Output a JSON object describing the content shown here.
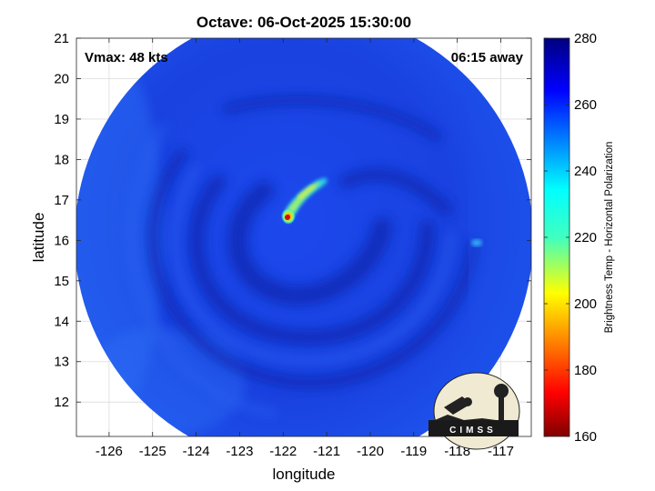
{
  "title": "Octave: 06-Oct-2025 15:30:00",
  "annotations": {
    "vmax": "Vmax: 48 kts",
    "time_away": "06:15 away"
  },
  "axes": {
    "xlabel": "longitude",
    "ylabel": "latitude",
    "xlim": [
      -126.75,
      -116.3
    ],
    "ylim": [
      11.15,
      21
    ],
    "x_ticks": [
      -126,
      -125,
      -124,
      -123,
      -122,
      -121,
      -120,
      -119,
      -118,
      -117
    ],
    "x_tick_labels": [
      "-126",
      "-125",
      "-124",
      "-123",
      "-122",
      "-121",
      "-120",
      "-119",
      "-118",
      "-117"
    ],
    "y_ticks": [
      12,
      13,
      14,
      15,
      16,
      17,
      18,
      19,
      20,
      21
    ],
    "y_tick_labels": [
      "12",
      "13",
      "14",
      "15",
      "16",
      "17",
      "18",
      "19",
      "20",
      "21"
    ],
    "grid": true
  },
  "colorbar": {
    "label": "Brightness Temp - Horizontal Polarization",
    "range": [
      160,
      280
    ],
    "ticks": [
      160,
      180,
      200,
      220,
      240,
      260,
      280
    ],
    "tick_labels": [
      "160",
      "180",
      "200",
      "220",
      "240",
      "260",
      "280"
    ],
    "colormap": "jet"
  },
  "logo": {
    "text": "CIMSS"
  },
  "colors": {
    "background_field": "#1a44e8",
    "dark_band": "#0d2ab8",
    "warm_core": "#d01010"
  },
  "chart_data": {
    "type": "heatmap",
    "title": "Octave: 06-Oct-2025 15:30:00",
    "xlabel": "longitude",
    "ylabel": "latitude",
    "xlim": [
      -126.75,
      -116.3
    ],
    "ylim": [
      11.15,
      21
    ],
    "swath_center": [
      -121.5,
      16.0
    ],
    "storm_center": [
      -121.95,
      16.55
    ],
    "background_tb": 262,
    "features": [
      {
        "name": "warm_core_max",
        "lon": -122.05,
        "lat": 16.5,
        "tb": 170
      },
      {
        "name": "rain_band_arc_1",
        "lon": -121.9,
        "lat": 16.8,
        "tb": 225
      },
      {
        "name": "rain_band_arc_2",
        "lon": -121.6,
        "lat": 17.1,
        "tb": 230
      },
      {
        "name": "rain_band_arc_3",
        "lon": -121.3,
        "lat": 17.35,
        "tb": 232
      },
      {
        "name": "rain_band_arc_4",
        "lon": -121.1,
        "lat": 17.45,
        "tb": 238
      },
      {
        "name": "small_cell_east",
        "lon": -118.1,
        "lat": 15.9,
        "tb": 242
      }
    ],
    "colorbar_range": [
      160,
      280
    ]
  }
}
